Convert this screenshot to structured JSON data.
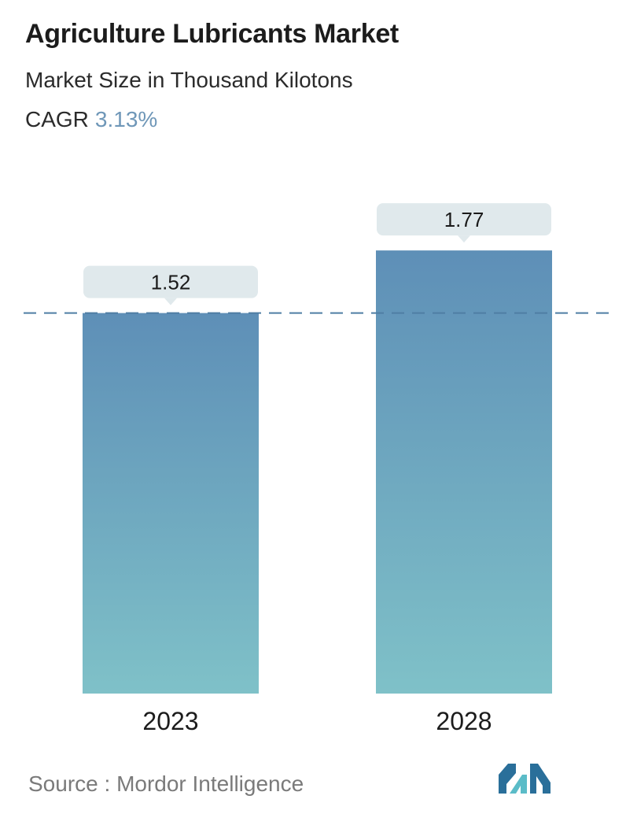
{
  "header": {
    "title": "Agriculture Lubricants Market",
    "subtitle": "Market Size in Thousand Kilotons",
    "cagr_label": "CAGR",
    "cagr_value": "3.13%"
  },
  "footer": {
    "source_label": "Source :",
    "source_name": "Mordor Intelligence",
    "logo_icon": "mordor-intelligence-logo-icon"
  },
  "colors": {
    "bar_top": "#5e8fb7",
    "bar_bottom": "#7fc1c8",
    "label_box": "#e0e9ec",
    "reference_line": "#4f7ea4",
    "cagr_accent": "#6f97b8",
    "logo_dark": "#2a6f9a",
    "logo_light": "#5bbcc8"
  },
  "chart_data": {
    "type": "bar",
    "categories": [
      "2023",
      "2028"
    ],
    "values": [
      1.52,
      1.77
    ],
    "value_labels": [
      "1.52",
      "1.77"
    ],
    "reference_line": {
      "value": 1.52,
      "style": "dashed"
    },
    "grid": false,
    "legend": "none"
  }
}
